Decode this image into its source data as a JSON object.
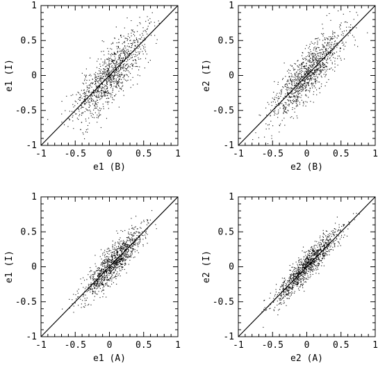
{
  "chart_data": [
    {
      "type": "scatter",
      "xlabel": "e1 (B)",
      "ylabel": "e1 (I)",
      "xlim": [
        -1,
        1
      ],
      "ylim": [
        -1,
        1
      ],
      "xticks": [
        "-1",
        "-0.5",
        "0",
        "0.5",
        "1"
      ],
      "yticks": [
        "-1",
        "-0.5",
        "0",
        "0.5",
        "1"
      ],
      "reference_line": {
        "type": "y=x"
      },
      "points": {
        "n": 1100,
        "x_mean": 0.0,
        "x_std": 0.26,
        "scatter_std": 0.19,
        "seed": 11
      }
    },
    {
      "type": "scatter",
      "xlabel": "e2 (B)",
      "ylabel": "e2 (I)",
      "xlim": [
        -1,
        1
      ],
      "ylim": [
        -1,
        1
      ],
      "xticks": [
        "-1",
        "-0.5",
        "0",
        "0.5",
        "1"
      ],
      "yticks": [
        "-1",
        "-0.5",
        "0",
        "0.5",
        "1"
      ],
      "reference_line": {
        "type": "y=x"
      },
      "points": {
        "n": 1100,
        "x_mean": 0.0,
        "x_std": 0.26,
        "scatter_std": 0.17,
        "seed": 23
      }
    },
    {
      "type": "scatter",
      "xlabel": "e1 (A)",
      "ylabel": "e1 (I)",
      "xlim": [
        -1,
        1
      ],
      "ylim": [
        -1,
        1
      ],
      "xticks": [
        "-1",
        "-0.5",
        "0",
        "0.5",
        "1"
      ],
      "yticks": [
        "-1",
        "-0.5",
        "0",
        "0.5",
        "1"
      ],
      "reference_line": {
        "type": "y=x"
      },
      "points": {
        "n": 1100,
        "x_mean": 0.05,
        "x_std": 0.22,
        "scatter_std": 0.12,
        "seed": 37
      }
    },
    {
      "type": "scatter",
      "xlabel": "e2 (A)",
      "ylabel": "e2 (I)",
      "xlim": [
        -1,
        1
      ],
      "ylim": [
        -1,
        1
      ],
      "xticks": [
        "-1",
        "-0.5",
        "0",
        "0.5",
        "1"
      ],
      "yticks": [
        "-1",
        "-0.5",
        "0",
        "0.5",
        "1"
      ],
      "reference_line": {
        "type": "y=x"
      },
      "points": {
        "n": 1100,
        "x_mean": 0.0,
        "x_std": 0.24,
        "scatter_std": 0.1,
        "seed": 51
      }
    }
  ]
}
